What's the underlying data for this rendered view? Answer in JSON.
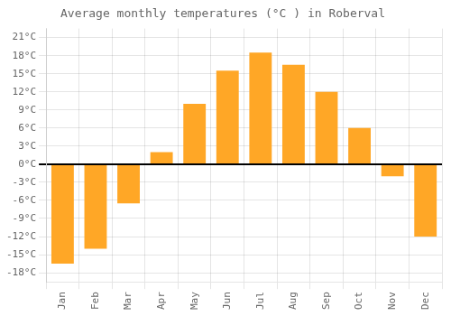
{
  "chart_data": {
    "type": "bar",
    "title": "Average monthly temperatures (°C ) in Roberval",
    "categories": [
      "Jan",
      "Feb",
      "Mar",
      "Apr",
      "May",
      "Jun",
      "Jul",
      "Aug",
      "Sep",
      "Oct",
      "Nov",
      "Dec"
    ],
    "values": [
      -16.5,
      -14.0,
      -6.5,
      2.0,
      10.0,
      15.5,
      18.5,
      16.5,
      12.0,
      6.0,
      -2.0,
      -12.0
    ],
    "color": "#FFA726",
    "ylim": [
      -19.5,
      22.5
    ],
    "yticks": [
      {
        "value": -18,
        "label": "-18°C"
      },
      {
        "value": -15,
        "label": "-15°C"
      },
      {
        "value": -12,
        "label": "-12°C"
      },
      {
        "value": -9,
        "label": "-9°C"
      },
      {
        "value": -6,
        "label": "-6°C"
      },
      {
        "value": -3,
        "label": "-3°C"
      },
      {
        "value": 0,
        "label": "0°C"
      },
      {
        "value": 3,
        "label": "3°C"
      },
      {
        "value": 6,
        "label": "6°C"
      },
      {
        "value": 9,
        "label": "9°C"
      },
      {
        "value": 12,
        "label": "12°C"
      },
      {
        "value": 15,
        "label": "15°C"
      },
      {
        "value": 18,
        "label": "18°C"
      },
      {
        "value": 21,
        "label": "21°C"
      }
    ],
    "grid": true
  }
}
